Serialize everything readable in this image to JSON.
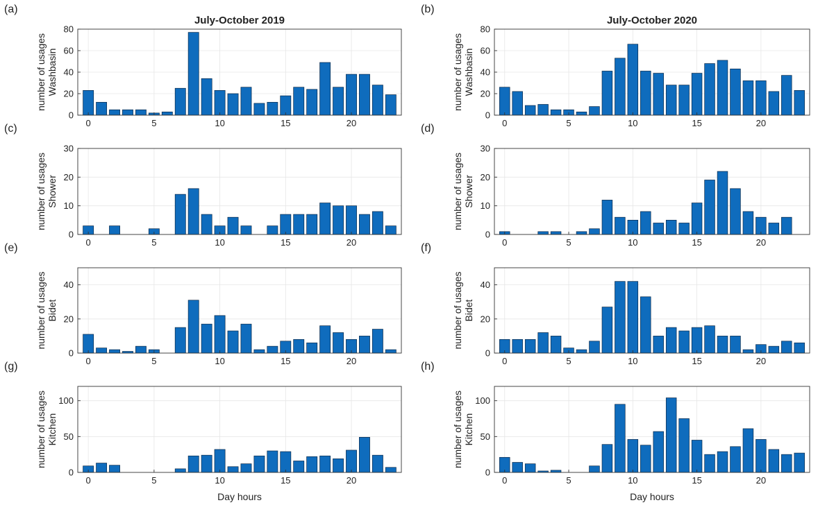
{
  "chart_data": [
    {
      "panel": "(a)",
      "type": "bar",
      "title": "July-October 2019",
      "ylabel": [
        "number of usages",
        "Washbasin"
      ],
      "xlabel": "",
      "ylim": [
        0,
        80
      ],
      "yticks": [
        0,
        20,
        40,
        60,
        80
      ],
      "xticks": [
        0,
        5,
        10,
        15,
        20
      ],
      "x": [
        0,
        1,
        2,
        3,
        4,
        5,
        6,
        7,
        8,
        9,
        10,
        11,
        12,
        13,
        14,
        15,
        16,
        17,
        18,
        19,
        20,
        21,
        22,
        23
      ],
      "values": [
        23,
        12,
        5,
        5,
        5,
        2,
        3,
        25,
        77,
        34,
        23,
        20,
        26,
        11,
        12,
        18,
        26,
        24,
        49,
        26,
        38,
        38,
        28,
        19
      ]
    },
    {
      "panel": "(b)",
      "type": "bar",
      "title": "July-October 2020",
      "ylabel": [
        "number of usages",
        "Washbasin"
      ],
      "xlabel": "",
      "ylim": [
        0,
        80
      ],
      "yticks": [
        0,
        20,
        40,
        60,
        80
      ],
      "xticks": [
        0,
        5,
        10,
        15,
        20
      ],
      "x": [
        0,
        1,
        2,
        3,
        4,
        5,
        6,
        7,
        8,
        9,
        10,
        11,
        12,
        13,
        14,
        15,
        16,
        17,
        18,
        19,
        20,
        21,
        22,
        23
      ],
      "values": [
        26,
        22,
        9,
        10,
        5,
        5,
        3,
        8,
        41,
        53,
        66,
        41,
        39,
        28,
        28,
        39,
        48,
        51,
        43,
        32,
        32,
        22,
        37,
        23
      ]
    },
    {
      "panel": "(c)",
      "type": "bar",
      "title": "",
      "ylabel": [
        "number of usages",
        "Shower"
      ],
      "xlabel": "",
      "ylim": [
        0,
        30
      ],
      "yticks": [
        0,
        10,
        20,
        30
      ],
      "xticks": [
        0,
        5,
        10,
        15,
        20
      ],
      "x": [
        0,
        1,
        2,
        3,
        4,
        5,
        6,
        7,
        8,
        9,
        10,
        11,
        12,
        13,
        14,
        15,
        16,
        17,
        18,
        19,
        20,
        21,
        22,
        23
      ],
      "values": [
        3,
        0,
        3,
        0,
        0,
        2,
        0,
        14,
        16,
        7,
        3,
        6,
        3,
        0,
        3,
        7,
        7,
        7,
        11,
        10,
        10,
        7,
        8,
        3
      ]
    },
    {
      "panel": "(d)",
      "type": "bar",
      "title": "",
      "ylabel": [
        "number of usages",
        "Shower"
      ],
      "xlabel": "",
      "ylim": [
        0,
        30
      ],
      "yticks": [
        0,
        10,
        20,
        30
      ],
      "xticks": [
        0,
        5,
        10,
        15,
        20
      ],
      "x": [
        0,
        1,
        2,
        3,
        4,
        5,
        6,
        7,
        8,
        9,
        10,
        11,
        12,
        13,
        14,
        15,
        16,
        17,
        18,
        19,
        20,
        21,
        22,
        23
      ],
      "values": [
        1,
        0,
        0,
        1,
        1,
        0,
        1,
        2,
        12,
        6,
        5,
        8,
        4,
        5,
        4,
        11,
        19,
        22,
        16,
        8,
        6,
        4,
        6,
        0
      ]
    },
    {
      "panel": "(e)",
      "type": "bar",
      "title": "",
      "ylabel": [
        "number of usages",
        "Bidet"
      ],
      "xlabel": "",
      "ylim": [
        0,
        50
      ],
      "yticks": [
        0,
        20,
        40
      ],
      "xticks": [
        0,
        5,
        10,
        15,
        20
      ],
      "x": [
        0,
        1,
        2,
        3,
        4,
        5,
        6,
        7,
        8,
        9,
        10,
        11,
        12,
        13,
        14,
        15,
        16,
        17,
        18,
        19,
        20,
        21,
        22,
        23
      ],
      "values": [
        11,
        3,
        2,
        1,
        4,
        2,
        0,
        15,
        31,
        17,
        22,
        13,
        17,
        2,
        4,
        7,
        8,
        6,
        16,
        12,
        8,
        10,
        14,
        2
      ]
    },
    {
      "panel": "(f)",
      "type": "bar",
      "title": "",
      "ylabel": [
        "number of usages",
        "Bidet"
      ],
      "xlabel": "",
      "ylim": [
        0,
        50
      ],
      "yticks": [
        0,
        20,
        40
      ],
      "xticks": [
        0,
        5,
        10,
        15,
        20
      ],
      "x": [
        0,
        1,
        2,
        3,
        4,
        5,
        6,
        7,
        8,
        9,
        10,
        11,
        12,
        13,
        14,
        15,
        16,
        17,
        18,
        19,
        20,
        21,
        22,
        23
      ],
      "values": [
        8,
        8,
        8,
        12,
        10,
        3,
        2,
        7,
        27,
        42,
        42,
        33,
        10,
        15,
        13,
        15,
        16,
        10,
        10,
        2,
        5,
        4,
        7,
        6
      ]
    },
    {
      "panel": "(g)",
      "type": "bar",
      "title": "",
      "ylabel": [
        "number of usages",
        "Kitchen"
      ],
      "xlabel": "Day hours",
      "ylim": [
        0,
        120
      ],
      "yticks": [
        0,
        50,
        100
      ],
      "xticks": [
        0,
        5,
        10,
        15,
        20
      ],
      "x": [
        0,
        1,
        2,
        3,
        4,
        5,
        6,
        7,
        8,
        9,
        10,
        11,
        12,
        13,
        14,
        15,
        16,
        17,
        18,
        19,
        20,
        21,
        22,
        23
      ],
      "values": [
        9,
        13,
        10,
        0,
        0,
        0,
        0,
        5,
        23,
        24,
        32,
        8,
        12,
        23,
        30,
        29,
        16,
        22,
        23,
        19,
        31,
        49,
        24,
        7
      ]
    },
    {
      "panel": "(h)",
      "type": "bar",
      "title": "",
      "ylabel": [
        "number of usages",
        "Kitchen"
      ],
      "xlabel": "Day hours",
      "ylim": [
        0,
        120
      ],
      "yticks": [
        0,
        50,
        100
      ],
      "xticks": [
        0,
        5,
        10,
        15,
        20
      ],
      "x": [
        0,
        1,
        2,
        3,
        4,
        5,
        6,
        7,
        8,
        9,
        10,
        11,
        12,
        13,
        14,
        15,
        16,
        17,
        18,
        19,
        20,
        21,
        22,
        23
      ],
      "values": [
        21,
        14,
        12,
        2,
        3,
        0,
        0,
        9,
        39,
        95,
        46,
        38,
        57,
        104,
        75,
        45,
        25,
        29,
        36,
        61,
        46,
        32,
        25,
        27
      ]
    }
  ],
  "colors": {
    "bar": "#0f6cbd",
    "bar_edge": "#0b2a4a",
    "grid": "#e6e6e6",
    "axis": "#333333"
  }
}
